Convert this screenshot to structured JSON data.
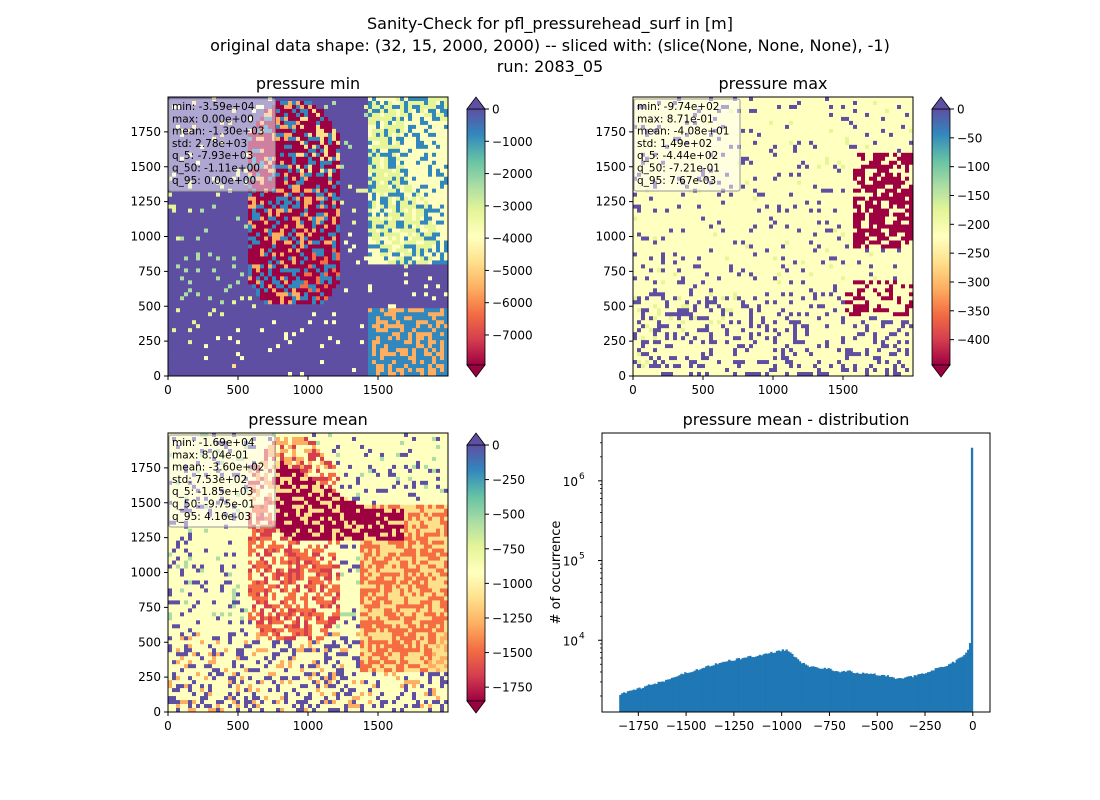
{
  "figure": {
    "suptitle_lines": [
      "Sanity-Check for pfl_pressurehead_surf in [m]",
      "original data shape: (32, 15, 2000, 2000) -- sliced with: (slice(None, None, None), -1)",
      "run: 2083_05"
    ]
  },
  "colormap": [
    "#5e4fa2",
    "#3288bd",
    "#66c2a5",
    "#abdda4",
    "#e6f598",
    "#ffffbf",
    "#fee08b",
    "#fdae61",
    "#f46d43",
    "#d53e4f",
    "#9e0142"
  ],
  "chart_data": [
    {
      "type": "heatmap",
      "title": "pressure min",
      "pattern": "min",
      "xlim": [
        0,
        2000
      ],
      "ylim": [
        0,
        2000
      ],
      "xticks": [
        "0",
        "500",
        "1000",
        "1500"
      ],
      "yticks": [
        "0",
        "250",
        "500",
        "750",
        "1000",
        "1250",
        "1500",
        "1750"
      ],
      "stats": [
        "min: -3.59e+04",
        "max: 0.00e+00",
        "mean: -1.30e+03",
        "std: 2.78e+03",
        "q_5: -7.93e+03",
        "q_50: -1.11e+00",
        "q_95: 0.00e+00"
      ],
      "colorbar": {
        "vmin": -7930,
        "vmax": 0,
        "ticks": [
          "0",
          "−1000",
          "−2000",
          "−3000",
          "−4000",
          "−5000",
          "−6000",
          "−7000"
        ],
        "tick_values": [
          0,
          -1000,
          -2000,
          -3000,
          -4000,
          -5000,
          -6000,
          -7000
        ],
        "extend": "both"
      }
    },
    {
      "type": "heatmap",
      "title": "pressure max",
      "pattern": "max",
      "xlim": [
        0,
        2000
      ],
      "ylim": [
        0,
        2000
      ],
      "xticks": [
        "0",
        "500",
        "1000",
        "1500"
      ],
      "yticks": [
        "0",
        "250",
        "500",
        "750",
        "1000",
        "1250",
        "1500",
        "1750"
      ],
      "stats": [
        "min: -9.74e+02",
        "max: 8.71e-01",
        "mean: -4.08e+01",
        "std: 1.49e+02",
        "q_5: -4.44e+02",
        "q_50: -7.21e-01",
        "q_95: 7.67e-03"
      ],
      "colorbar": {
        "vmin": -444,
        "vmax": 0,
        "ticks": [
          "0",
          "−50",
          "−100",
          "−150",
          "−200",
          "−250",
          "−300",
          "−350",
          "−400"
        ],
        "tick_values": [
          0,
          -50,
          -100,
          -150,
          -200,
          -250,
          -300,
          -350,
          -400
        ],
        "extend": "both"
      }
    },
    {
      "type": "heatmap",
      "title": "pressure mean",
      "pattern": "mean",
      "xlim": [
        0,
        2000
      ],
      "ylim": [
        0,
        2000
      ],
      "xticks": [
        "0",
        "500",
        "1000",
        "1500"
      ],
      "yticks": [
        "0",
        "250",
        "500",
        "750",
        "1000",
        "1250",
        "1500",
        "1750"
      ],
      "stats": [
        "min: -1.69e+04",
        "max: 8.04e-01",
        "mean: -3.60e+02",
        "std: 7.53e+02",
        "q_5: -1.85e+03",
        "q_50: -9.75e-01",
        "q_95: 4.16e-03"
      ],
      "colorbar": {
        "vmin": -1850,
        "vmax": 0,
        "ticks": [
          "0",
          "−250",
          "−500",
          "−750",
          "−1000",
          "−1250",
          "−1500",
          "−1750"
        ],
        "tick_values": [
          0,
          -250,
          -500,
          -750,
          -1000,
          -1250,
          -1500,
          -1750
        ],
        "extend": "both"
      }
    },
    {
      "type": "bar",
      "title": "pressure mean - distribution",
      "ylabel": "# of occurrence",
      "xlabel": "",
      "yscale": "log",
      "xlim": [
        -1940,
        90
      ],
      "ylim_log10": [
        3.1,
        6.6
      ],
      "xticks": [
        "−1750",
        "−1500",
        "−1250",
        "−1000",
        "−750",
        "−500",
        "−250",
        "0"
      ],
      "xtick_values": [
        -1750,
        -1500,
        -1250,
        -1000,
        -750,
        -500,
        -250,
        0
      ],
      "yticks": [
        "10",
        "10",
        "10"
      ],
      "ytick_exponents": [
        "4",
        "5",
        "6"
      ],
      "ytick_log10": [
        4,
        5,
        6
      ],
      "bar_color": "#1f77b4",
      "bins_from": -1850,
      "bins_to": 0,
      "bin_width": 10,
      "profile_x": [
        -1850,
        -1800,
        -1700,
        -1600,
        -1500,
        -1400,
        -1300,
        -1200,
        -1100,
        -1000,
        -980,
        -950,
        -900,
        -850,
        -800,
        -750,
        -700,
        -650,
        -600,
        -550,
        -500,
        -450,
        -400,
        -350,
        -300,
        -250,
        -200,
        -150,
        -100,
        -50,
        -30,
        -20,
        -15,
        -10,
        -5,
        0
      ],
      "profile_y": [
        2100,
        2250,
        2700,
        3200,
        3900,
        4600,
        5400,
        6000,
        6600,
        7500,
        7600,
        6800,
        5300,
        4700,
        4400,
        4400,
        4000,
        4100,
        3800,
        3900,
        3700,
        3600,
        3300,
        3400,
        3600,
        3900,
        4300,
        4700,
        5300,
        6300,
        7200,
        8000,
        9500,
        12000,
        16000,
        2600000
      ]
    }
  ]
}
